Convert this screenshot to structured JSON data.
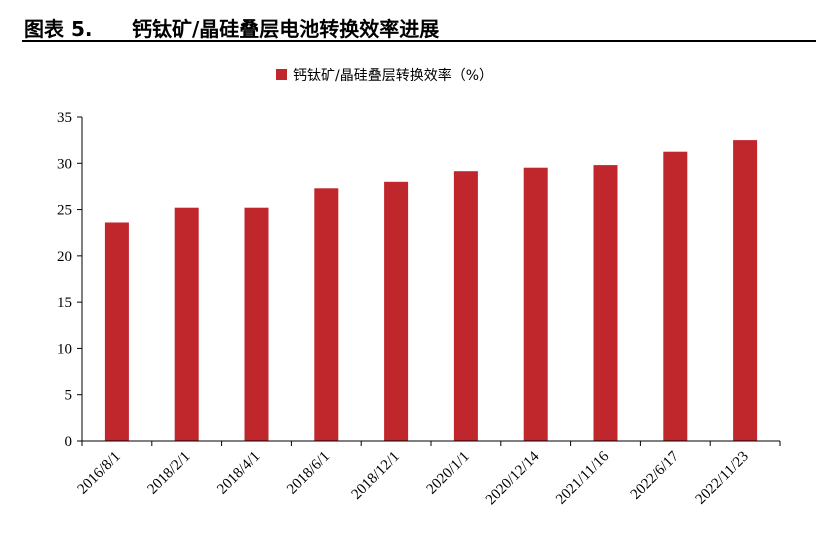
{
  "figure": {
    "label": "图表 5.",
    "title": "钙钛矿/晶硅叠层电池转换效率进展"
  },
  "colors": {
    "bar": "#C0272D",
    "axis": "#000000"
  },
  "chart_data": {
    "type": "bar",
    "categories": [
      "2016/8/1",
      "2018/2/1",
      "2018/4/1",
      "2018/6/1",
      "2018/12/1",
      "2020/1/1",
      "2020/12/14",
      "2021/11/16",
      "2022/6/17",
      "2022/11/23"
    ],
    "series": [
      {
        "name": "钙钛矿/晶硅叠层转换效率（%）",
        "values": [
          23.6,
          25.2,
          25.2,
          27.3,
          28.0,
          29.15,
          29.52,
          29.8,
          31.25,
          32.5
        ]
      }
    ],
    "y_ticks": [
      "0",
      "5",
      "10",
      "15",
      "20",
      "25",
      "30",
      "35"
    ],
    "ylim": [
      0,
      35
    ],
    "grid": false,
    "legend": "top-center"
  }
}
